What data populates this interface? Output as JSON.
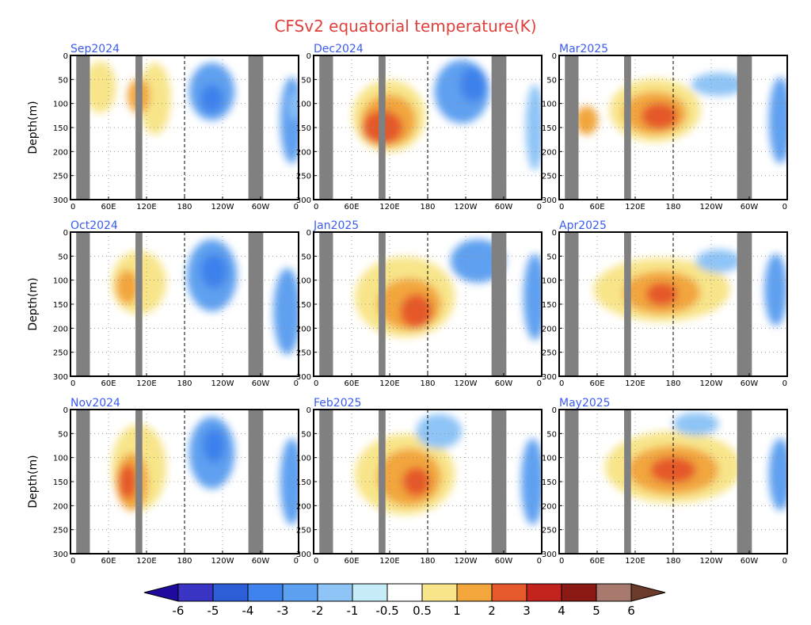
{
  "chart_data": {
    "type": "heatmap",
    "title": "CFSv2 equatorial temperature(K)",
    "ylabel": "Depth(m)",
    "ylim": [
      300,
      0
    ],
    "y_ticks": [
      "0",
      "50",
      "100",
      "150",
      "200",
      "250",
      "300"
    ],
    "x_ticks": [
      "0",
      "60E",
      "120E",
      "180",
      "120W",
      "60W",
      "0"
    ],
    "grid": true,
    "colorbar": {
      "levels": [
        "-6",
        "-5",
        "-4",
        "-3",
        "-2",
        "-1",
        "-0.5",
        "0.5",
        "1",
        "2",
        "3",
        "4",
        "5",
        "6"
      ],
      "colors": [
        "#1e0a9c",
        "#3a34c4",
        "#2c5ed8",
        "#3e82ec",
        "#5ea0f0",
        "#8ec4f6",
        "#c6ecf8",
        "#ffffff",
        "#f8e58a",
        "#f2a63c",
        "#e5592a",
        "#c2231c",
        "#8c1a14",
        "#a87a6e",
        "#6b3a28"
      ]
    },
    "panels": [
      {
        "label": "Sep2024"
      },
      {
        "label": "Dec2024"
      },
      {
        "label": "Mar2025"
      },
      {
        "label": "Oct2024"
      },
      {
        "label": "Jan2025"
      },
      {
        "label": "Apr2025"
      },
      {
        "label": "Nov2024"
      },
      {
        "label": "Feb2025"
      },
      {
        "label": "May2025"
      }
    ]
  }
}
